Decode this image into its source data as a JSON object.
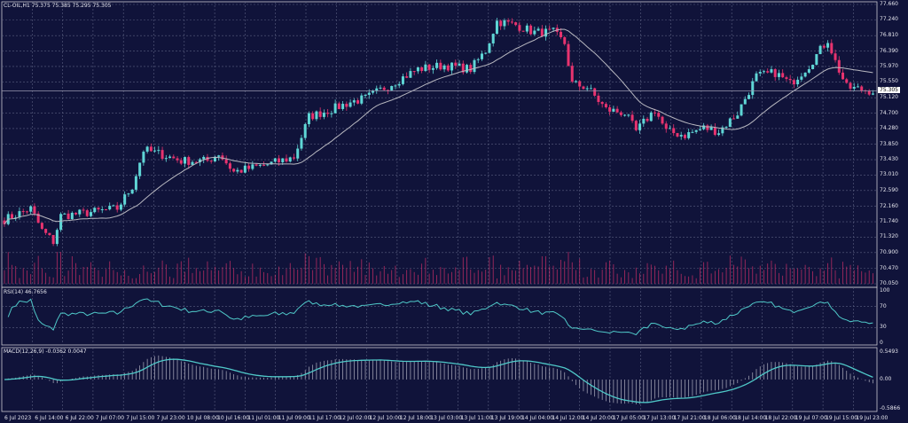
{
  "header": {
    "symbol": "CL-OIL,H1",
    "ohlc": "75.375 75.385 75.295 75.305"
  },
  "rsi_label": "RSI(14) 46.7656",
  "macd_label": "MACD(12,26,9) -0.0362 0.0047",
  "colors": {
    "background": "#10133a",
    "grid": "#5a5f80",
    "bull": "#5fd6d6",
    "bear": "#e8336f",
    "ma": "#b8b8c0",
    "indicator": "#4fc8c8",
    "axis": "#c8c8d0"
  },
  "chart_data": {
    "type": "candlestick",
    "price_axis": {
      "ticks": [
        "77.660",
        "77.240",
        "76.810",
        "76.390",
        "75.970",
        "75.550",
        "75.120",
        "74.700",
        "74.280",
        "73.850",
        "73.430",
        "73.010",
        "72.590",
        "72.160",
        "71.740",
        "71.320",
        "70.900",
        "70.470",
        "70.050"
      ],
      "range": [
        70.05,
        77.66
      ]
    },
    "current_price": "75.305",
    "rsi_axis": {
      "ticks": [
        "100",
        "70",
        "30",
        "0"
      ]
    },
    "macd_axis": {
      "ticks": [
        "0.5493",
        "0.00",
        "-0.5866"
      ]
    },
    "time_labels": [
      "6 Jul 2023",
      "6 Jul 14:00",
      "6 Jul 22:00",
      "7 Jul 07:00",
      "7 Jul 15:00",
      "7 Jul 23:00",
      "10 Jul 08:00",
      "10 Jul 16:00",
      "11 Jul 01:00",
      "11 Jul 09:00",
      "11 Jul 17:00",
      "12 Jul 02:00",
      "12 Jul 10:00",
      "12 Jul 18:00",
      "13 Jul 03:00",
      "13 Jul 11:00",
      "13 Jul 19:00",
      "14 Jul 04:00",
      "14 Jul 12:00",
      "14 Jul 20:00",
      "17 Jul 05:00",
      "17 Jul 13:00",
      "17 Jul 21:00",
      "18 Jul 06:00",
      "18 Jul 14:00",
      "18 Jul 22:00",
      "19 Jul 07:00",
      "19 Jul 15:00",
      "19 Jul 23:00"
    ],
    "close_path": [
      {
        "bar": 0,
        "close": 71.8
      },
      {
        "bar": 7,
        "close": 72.1
      },
      {
        "bar": 10,
        "close": 71.5
      },
      {
        "bar": 13,
        "close": 71.2
      },
      {
        "bar": 15,
        "close": 71.9
      },
      {
        "bar": 23,
        "close": 72.0
      },
      {
        "bar": 30,
        "close": 72.1
      },
      {
        "bar": 34,
        "close": 72.7
      },
      {
        "bar": 37,
        "close": 73.7
      },
      {
        "bar": 41,
        "close": 73.6
      },
      {
        "bar": 47,
        "close": 73.4
      },
      {
        "bar": 54,
        "close": 73.4
      },
      {
        "bar": 57,
        "close": 73.6
      },
      {
        "bar": 61,
        "close": 73.1
      },
      {
        "bar": 70,
        "close": 73.3
      },
      {
        "bar": 77,
        "close": 73.5
      },
      {
        "bar": 81,
        "close": 74.6
      },
      {
        "bar": 87,
        "close": 74.8
      },
      {
        "bar": 92,
        "close": 75.0
      },
      {
        "bar": 96,
        "close": 75.1
      },
      {
        "bar": 103,
        "close": 75.5
      },
      {
        "bar": 110,
        "close": 75.9
      },
      {
        "bar": 117,
        "close": 76.0
      },
      {
        "bar": 124,
        "close": 75.9
      },
      {
        "bar": 128,
        "close": 76.4
      },
      {
        "bar": 131,
        "close": 77.2
      },
      {
        "bar": 136,
        "close": 77.1
      },
      {
        "bar": 141,
        "close": 76.9
      },
      {
        "bar": 146,
        "close": 76.9
      },
      {
        "bar": 149,
        "close": 76.6
      },
      {
        "bar": 151,
        "close": 75.5
      },
      {
        "bar": 155,
        "close": 75.4
      },
      {
        "bar": 160,
        "close": 74.8
      },
      {
        "bar": 165,
        "close": 74.7
      },
      {
        "bar": 168,
        "close": 74.2
      },
      {
        "bar": 173,
        "close": 74.8
      },
      {
        "bar": 176,
        "close": 74.2
      },
      {
        "bar": 181,
        "close": 74.1
      },
      {
        "bar": 186,
        "close": 74.3
      },
      {
        "bar": 190,
        "close": 74.2
      },
      {
        "bar": 195,
        "close": 74.7
      },
      {
        "bar": 200,
        "close": 75.7
      },
      {
        "bar": 205,
        "close": 75.8
      },
      {
        "bar": 209,
        "close": 75.5
      },
      {
        "bar": 214,
        "close": 76.0
      },
      {
        "bar": 219,
        "close": 76.7
      },
      {
        "bar": 221,
        "close": 76.1
      },
      {
        "bar": 224,
        "close": 75.4
      },
      {
        "bar": 231,
        "close": 75.3
      }
    ]
  }
}
